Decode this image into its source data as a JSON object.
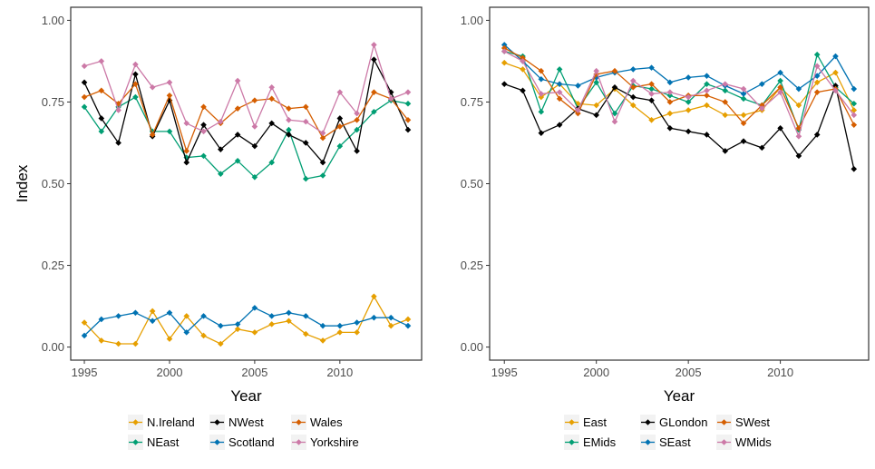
{
  "chart_data": [
    {
      "type": "line",
      "title": "",
      "xlabel": "Year",
      "ylabel": "Index",
      "xlim": [
        1994.2,
        2014.8
      ],
      "ylim": [
        -0.04,
        1.04
      ],
      "x_ticks": [
        "1995",
        "2000",
        "2005",
        "2010"
      ],
      "y_ticks": [
        "0.00",
        "0.25",
        "0.50",
        "0.75",
        "1.00"
      ],
      "grid": false,
      "legend_position": "bottom",
      "x": [
        1995,
        1996,
        1997,
        1998,
        1999,
        2000,
        2001,
        2002,
        2003,
        2004,
        2005,
        2006,
        2007,
        2008,
        2009,
        2010,
        2011,
        2012,
        2013,
        2014
      ],
      "series": [
        {
          "name": "N.Ireland",
          "color": "#E69F00",
          "values": [
            0.075,
            0.02,
            0.01,
            0.01,
            0.11,
            0.025,
            0.095,
            0.035,
            0.01,
            0.055,
            0.045,
            0.07,
            0.08,
            0.04,
            0.02,
            0.045,
            0.045,
            0.155,
            0.065,
            0.085
          ]
        },
        {
          "name": "NEast",
          "color": "#009E73",
          "values": [
            0.735,
            0.66,
            0.735,
            0.765,
            0.66,
            0.66,
            0.58,
            0.585,
            0.53,
            0.57,
            0.52,
            0.565,
            0.665,
            0.515,
            0.525,
            0.615,
            0.665,
            0.72,
            0.755,
            0.745
          ]
        },
        {
          "name": "NWest",
          "color": "#000000",
          "values": [
            0.81,
            0.7,
            0.625,
            0.835,
            0.645,
            0.755,
            0.565,
            0.68,
            0.605,
            0.65,
            0.615,
            0.685,
            0.65,
            0.625,
            0.565,
            0.7,
            0.6,
            0.88,
            0.78,
            0.665
          ]
        },
        {
          "name": "Scotland",
          "color": "#0072B2",
          "values": [
            0.035,
            0.085,
            0.095,
            0.105,
            0.08,
            0.105,
            0.045,
            0.095,
            0.065,
            0.07,
            0.12,
            0.095,
            0.105,
            0.095,
            0.065,
            0.065,
            0.075,
            0.09,
            0.09,
            0.065
          ]
        },
        {
          "name": "Wales",
          "color": "#D55E00",
          "values": [
            0.765,
            0.785,
            0.745,
            0.805,
            0.65,
            0.77,
            0.6,
            0.735,
            0.685,
            0.73,
            0.755,
            0.76,
            0.73,
            0.735,
            0.64,
            0.675,
            0.695,
            0.78,
            0.76,
            0.695
          ]
        },
        {
          "name": "Yorkshire",
          "color": "#CC79A7",
          "values": [
            0.86,
            0.875,
            0.725,
            0.865,
            0.795,
            0.81,
            0.685,
            0.66,
            0.69,
            0.815,
            0.675,
            0.795,
            0.695,
            0.69,
            0.655,
            0.78,
            0.715,
            0.925,
            0.76,
            0.78
          ]
        }
      ]
    },
    {
      "type": "line",
      "title": "",
      "xlabel": "Year",
      "ylabel": "",
      "xlim": [
        1994.2,
        2014.8
      ],
      "ylim": [
        -0.04,
        1.04
      ],
      "x_ticks": [
        "1995",
        "2000",
        "2005",
        "2010"
      ],
      "y_ticks": [
        "0.00",
        "0.25",
        "0.50",
        "0.75",
        "1.00"
      ],
      "grid": false,
      "legend_position": "bottom",
      "x": [
        1995,
        1996,
        1997,
        1998,
        1999,
        2000,
        2001,
        2002,
        2003,
        2004,
        2005,
        2006,
        2007,
        2008,
        2009,
        2010,
        2011,
        2012,
        2013,
        2014
      ],
      "series": [
        {
          "name": "East",
          "color": "#E69F00",
          "values": [
            0.87,
            0.85,
            0.765,
            0.805,
            0.745,
            0.74,
            0.79,
            0.74,
            0.695,
            0.715,
            0.725,
            0.74,
            0.71,
            0.71,
            0.725,
            0.795,
            0.74,
            0.81,
            0.84,
            0.725
          ]
        },
        {
          "name": "EMids",
          "color": "#009E73",
          "values": [
            0.905,
            0.89,
            0.72,
            0.85,
            0.73,
            0.81,
            0.715,
            0.8,
            0.79,
            0.77,
            0.75,
            0.805,
            0.785,
            0.76,
            0.74,
            0.815,
            0.665,
            0.895,
            0.795,
            0.745
          ]
        },
        {
          "name": "GLondon",
          "color": "#000000",
          "values": [
            0.805,
            0.785,
            0.655,
            0.68,
            0.73,
            0.71,
            0.795,
            0.765,
            0.755,
            0.67,
            0.66,
            0.65,
            0.6,
            0.63,
            0.61,
            0.67,
            0.585,
            0.65,
            0.8,
            0.545
          ]
        },
        {
          "name": "SEast",
          "color": "#0072B2",
          "values": [
            0.925,
            0.875,
            0.82,
            0.805,
            0.8,
            0.825,
            0.84,
            0.85,
            0.855,
            0.81,
            0.825,
            0.83,
            0.8,
            0.775,
            0.805,
            0.84,
            0.79,
            0.83,
            0.89,
            0.79
          ]
        },
        {
          "name": "SWest",
          "color": "#D55E00",
          "values": [
            0.915,
            0.885,
            0.845,
            0.76,
            0.715,
            0.835,
            0.845,
            0.795,
            0.805,
            0.75,
            0.77,
            0.77,
            0.75,
            0.685,
            0.74,
            0.795,
            0.67,
            0.78,
            0.79,
            0.68
          ]
        },
        {
          "name": "WMids",
          "color": "#CC79A7",
          "values": [
            0.905,
            0.875,
            0.775,
            0.78,
            0.725,
            0.845,
            0.69,
            0.815,
            0.775,
            0.78,
            0.765,
            0.785,
            0.805,
            0.79,
            0.73,
            0.78,
            0.645,
            0.86,
            0.785,
            0.71
          ]
        }
      ]
    }
  ]
}
